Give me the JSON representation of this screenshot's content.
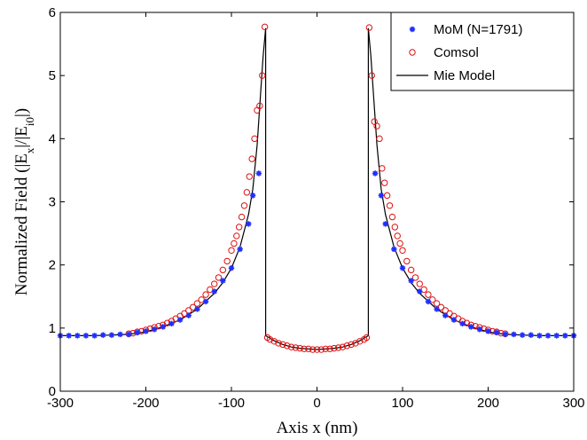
{
  "chart_data": {
    "type": "line",
    "title": "",
    "xlabel": "Axis x (nm)",
    "ylabel": {
      "prefix": "Normalized Field (|E",
      "sub1": "x",
      "mid": "|/|E",
      "sub2": "i0",
      "suffix": "|)"
    },
    "xlim": [
      -300,
      300
    ],
    "ylim": [
      0,
      6
    ],
    "xticks": [
      "-300",
      "-200",
      "-100",
      "0",
      "100",
      "200",
      "300"
    ],
    "yticks": [
      "0",
      "1",
      "2",
      "3",
      "4",
      "5",
      "6"
    ],
    "grid": false,
    "legend": {
      "position": "top-right",
      "entries": [
        "MoM (N=1791)",
        "Comsol",
        "Mie Model"
      ]
    },
    "series": [
      {
        "name": "MoM (N=1791)",
        "marker": "asterisk",
        "color": "#1f2fff",
        "x": [
          -300,
          -290,
          -280,
          -270,
          -260,
          -250,
          -240,
          -230,
          -220,
          -210,
          -200,
          -190,
          -180,
          -170,
          -160,
          -150,
          -140,
          -130,
          -120,
          -110,
          -100,
          -90,
          -80,
          -75,
          -68,
          68,
          75,
          80,
          90,
          100,
          110,
          120,
          130,
          140,
          150,
          160,
          170,
          180,
          190,
          200,
          210,
          220,
          230,
          240,
          250,
          260,
          270,
          280,
          290,
          300
        ],
        "y": [
          0.88,
          0.88,
          0.88,
          0.88,
          0.88,
          0.89,
          0.89,
          0.9,
          0.9,
          0.93,
          0.95,
          0.98,
          1.02,
          1.07,
          1.13,
          1.2,
          1.3,
          1.42,
          1.58,
          1.75,
          1.95,
          2.25,
          2.65,
          3.1,
          3.45,
          3.45,
          3.1,
          2.65,
          2.25,
          1.95,
          1.75,
          1.58,
          1.42,
          1.3,
          1.2,
          1.13,
          1.07,
          1.02,
          0.98,
          0.95,
          0.93,
          0.9,
          0.9,
          0.89,
          0.89,
          0.88,
          0.88,
          0.88,
          0.88,
          0.88
        ]
      },
      {
        "name": "Comsol",
        "marker": "circle",
        "color": "#dd1111",
        "x": [
          -220,
          -215,
          -210,
          -205,
          -200,
          -195,
          -190,
          -185,
          -180,
          -175,
          -170,
          -165,
          -160,
          -155,
          -150,
          -145,
          -140,
          -135,
          -130,
          -125,
          -120,
          -115,
          -110,
          -105,
          -100,
          -97,
          -94,
          -91,
          -88,
          -85,
          -82,
          -79,
          -76,
          -73,
          -70,
          -67,
          -64,
          -61,
          -58,
          -55,
          -50,
          -45,
          -40,
          -35,
          -30,
          -25,
          -20,
          -15,
          -10,
          -5,
          0,
          5,
          10,
          15,
          20,
          25,
          30,
          35,
          40,
          45,
          50,
          55,
          58,
          61,
          64,
          67,
          70,
          73,
          76,
          79,
          82,
          85,
          88,
          91,
          94,
          97,
          100,
          105,
          110,
          115,
          120,
          125,
          130,
          135,
          140,
          145,
          150,
          155,
          160,
          165,
          170,
          175,
          180,
          185,
          190,
          195,
          200,
          205,
          210,
          215,
          220
        ],
        "y": [
          0.91,
          0.92,
          0.94,
          0.95,
          0.97,
          0.99,
          1.01,
          1.03,
          1.05,
          1.08,
          1.11,
          1.15,
          1.19,
          1.23,
          1.28,
          1.33,
          1.39,
          1.45,
          1.53,
          1.61,
          1.7,
          1.8,
          1.92,
          2.06,
          2.23,
          2.34,
          2.46,
          2.6,
          2.76,
          2.94,
          3.15,
          3.4,
          3.68,
          4.0,
          4.45,
          4.52,
          5.0,
          5.77,
          0.85,
          0.82,
          0.79,
          0.76,
          0.74,
          0.72,
          0.7,
          0.69,
          0.68,
          0.67,
          0.67,
          0.66,
          0.66,
          0.66,
          0.67,
          0.67,
          0.68,
          0.69,
          0.7,
          0.72,
          0.74,
          0.76,
          0.79,
          0.82,
          0.85,
          5.76,
          5.0,
          4.27,
          4.2,
          4.0,
          3.53,
          3.3,
          3.1,
          2.94,
          2.76,
          2.6,
          2.46,
          2.34,
          2.23,
          2.06,
          1.92,
          1.8,
          1.7,
          1.61,
          1.53,
          1.45,
          1.39,
          1.33,
          1.28,
          1.23,
          1.19,
          1.15,
          1.11,
          1.08,
          1.05,
          1.03,
          1.01,
          0.99,
          0.97,
          0.95,
          0.94,
          0.92,
          0.91
        ]
      },
      {
        "name": "Mie Model",
        "marker": "none",
        "color": "#000000",
        "x": [
          -300,
          -280,
          -260,
          -240,
          -220,
          -200,
          -180,
          -160,
          -140,
          -120,
          -110,
          -100,
          -90,
          -80,
          -75,
          -70,
          -66,
          -63,
          -60,
          -60,
          -50,
          -40,
          -30,
          -20,
          -10,
          0,
          10,
          20,
          30,
          40,
          50,
          60,
          60,
          63,
          66,
          70,
          75,
          80,
          90,
          100,
          110,
          120,
          140,
          160,
          180,
          200,
          220,
          240,
          260,
          280,
          300
        ],
        "y": [
          0.88,
          0.88,
          0.88,
          0.89,
          0.9,
          0.94,
          1.02,
          1.13,
          1.3,
          1.55,
          1.72,
          1.95,
          2.28,
          2.8,
          3.2,
          3.9,
          4.7,
          5.3,
          5.75,
          0.88,
          0.8,
          0.74,
          0.7,
          0.68,
          0.67,
          0.66,
          0.67,
          0.68,
          0.7,
          0.74,
          0.8,
          0.88,
          5.75,
          5.3,
          4.7,
          3.9,
          3.2,
          2.8,
          2.28,
          1.95,
          1.72,
          1.55,
          1.3,
          1.13,
          1.02,
          0.94,
          0.9,
          0.89,
          0.88,
          0.88,
          0.88
        ]
      }
    ]
  }
}
